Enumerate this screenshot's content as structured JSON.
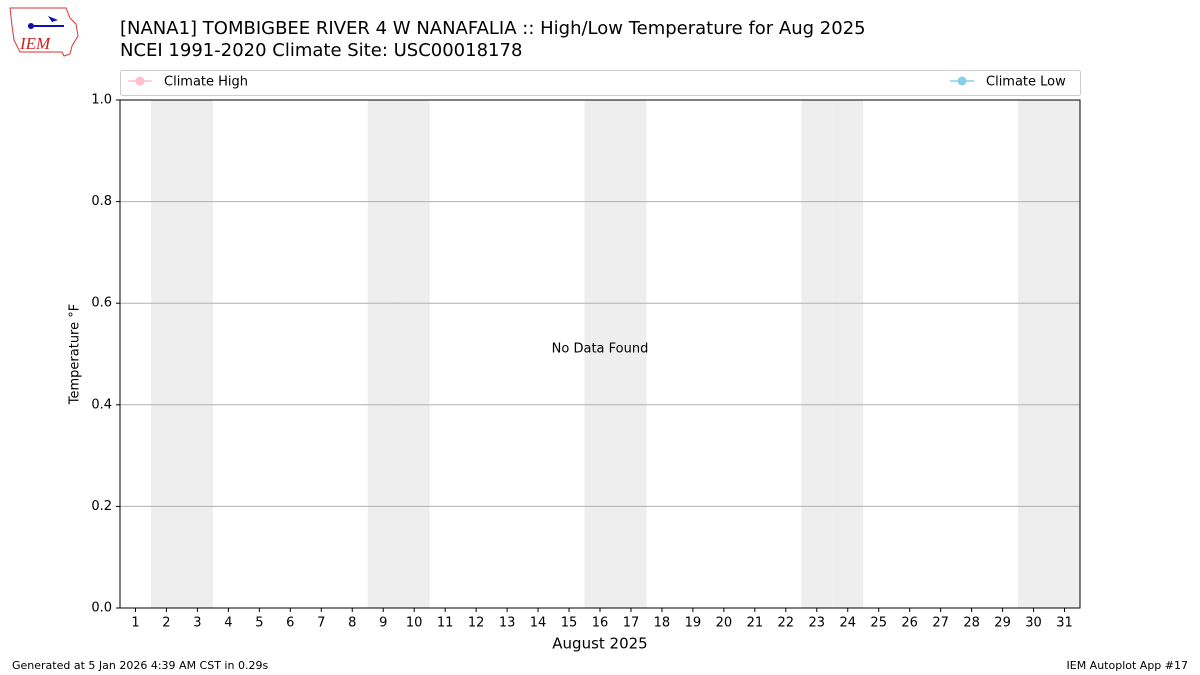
{
  "logo_text": "IEM",
  "chart_data": {
    "type": "line",
    "title": "[NANA1] TOMBIGBEE RIVER 4 W NANAFALIA :: High/Low Temperature for Aug 2025",
    "subtitle": "NCEI 1991-2020 Climate Site: USC00018178",
    "xlabel": "August 2025",
    "ylabel": "Temperature °F",
    "annotation": "No Data Found",
    "x": [
      1,
      2,
      3,
      4,
      5,
      6,
      7,
      8,
      9,
      10,
      11,
      12,
      13,
      14,
      15,
      16,
      17,
      18,
      19,
      20,
      21,
      22,
      23,
      24,
      25,
      26,
      27,
      28,
      29,
      30,
      31
    ],
    "series": [
      {
        "name": "Climate High",
        "color": "pink",
        "values": [
          null,
          null,
          null,
          null,
          null,
          null,
          null,
          null,
          null,
          null,
          null,
          null,
          null,
          null,
          null,
          null,
          null,
          null,
          null,
          null,
          null,
          null,
          null,
          null,
          null,
          null,
          null,
          null,
          null,
          null,
          null
        ]
      },
      {
        "name": "Climate Low",
        "color": "skyblue",
        "values": [
          null,
          null,
          null,
          null,
          null,
          null,
          null,
          null,
          null,
          null,
          null,
          null,
          null,
          null,
          null,
          null,
          null,
          null,
          null,
          null,
          null,
          null,
          null,
          null,
          null,
          null,
          null,
          null,
          null,
          null,
          null
        ]
      }
    ],
    "xlim": [
      0.5,
      31.5
    ],
    "xticks": [
      1,
      2,
      3,
      4,
      5,
      6,
      7,
      8,
      9,
      10,
      11,
      12,
      13,
      14,
      15,
      16,
      17,
      18,
      19,
      20,
      21,
      22,
      23,
      24,
      25,
      26,
      27,
      28,
      29,
      30,
      31
    ],
    "ylim": [
      0,
      1
    ],
    "yticks": [
      {
        "value": 0,
        "label": "0.0"
      },
      0.2,
      0.4,
      0.6,
      0.8,
      {
        "value": 1,
        "label": "1.0"
      }
    ],
    "grid": true,
    "weekend_shading": true,
    "footer_left": "Generated at 5 Jan 2026 4:39 AM CST in 0.29s",
    "footer_right": "IEM Autoplot App #17"
  }
}
